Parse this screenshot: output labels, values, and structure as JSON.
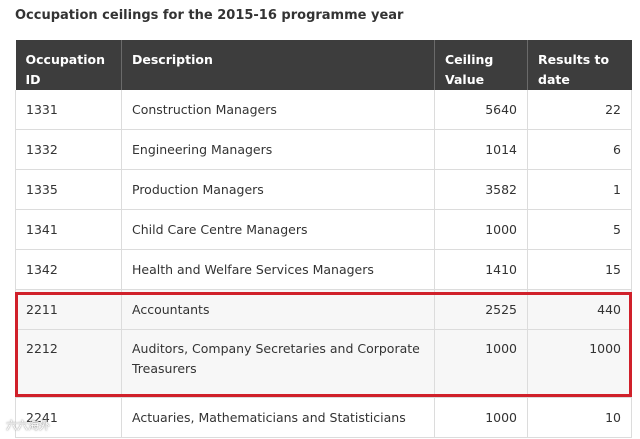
{
  "title": "Occupation ceilings for the 2015-16 programme year",
  "table": {
    "headers": [
      "Occupation ID",
      "Description",
      "Ceiling Value",
      "Results to date"
    ],
    "rows": [
      {
        "id": "1331",
        "description": "Construction Managers",
        "ceiling": "5640",
        "results": "22"
      },
      {
        "id": "1332",
        "description": "Engineering Managers",
        "ceiling": "1014",
        "results": "6"
      },
      {
        "id": "1335",
        "description": "Production Managers",
        "ceiling": "3582",
        "results": "1"
      },
      {
        "id": "1341",
        "description": "Child Care Centre Managers",
        "ceiling": "1000",
        "results": "5"
      },
      {
        "id": "1342",
        "description": "Health and Welfare Services Managers",
        "ceiling": "1410",
        "results": "15"
      },
      {
        "id": "2211",
        "description": "Accountants",
        "ceiling": "2525",
        "results": "440"
      },
      {
        "id": "2212",
        "description": "Auditors, Company Secretaries and Corporate Treasurers",
        "ceiling": "1000",
        "results": "1000"
      },
      {
        "id": "2241",
        "description": "Actuaries, Mathematicians and Statisticians",
        "ceiling": "1000",
        "results": "10"
      }
    ]
  },
  "highlight_color": "#d0202a",
  "header_bg": "#3d3d3d",
  "watermark": "六六海外"
}
